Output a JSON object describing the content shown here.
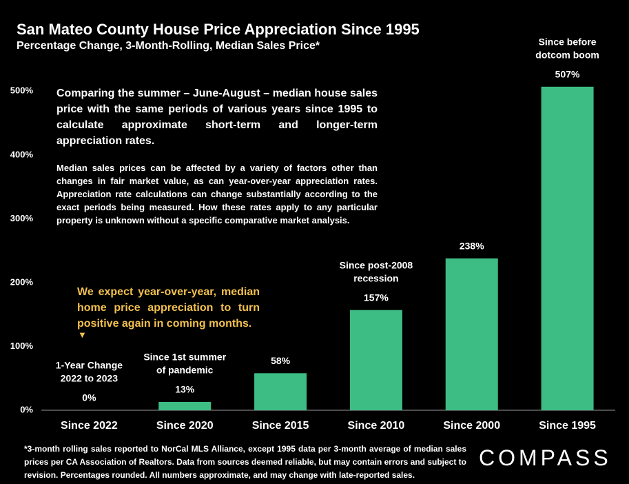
{
  "chart_data": {
    "type": "bar",
    "title": "San Mateo County House Price Appreciation Since 1995",
    "subtitle": "Percentage Change, 3-Month-Rolling, Median Sales Price*",
    "categories": [
      "Since 2022",
      "Since 2020",
      "Since 2015",
      "Since 2010",
      "Since 2000",
      "Since 1995"
    ],
    "values": [
      0,
      13,
      58,
      157,
      238,
      507
    ],
    "value_labels": [
      "0%",
      "13%",
      "58%",
      "157%",
      "238%",
      "507%"
    ],
    "bar_notes": [
      [
        "1-Year Change",
        "2022 to 2023"
      ],
      [
        "Since 1st summer",
        "of pandemic"
      ],
      null,
      [
        "Since post-2008",
        "recession"
      ],
      null,
      [
        "Since before",
        "dotcom boom"
      ]
    ],
    "color": "#3dbd84",
    "ylim": [
      0,
      550
    ],
    "yticks": [
      {
        "value": 0,
        "label": "0%"
      },
      {
        "value": 100,
        "label": "100%"
      },
      {
        "value": 200,
        "label": "200%"
      },
      {
        "value": 300,
        "label": "300%"
      },
      {
        "value": 400,
        "label": "400%"
      },
      {
        "value": 500,
        "label": "500%"
      }
    ],
    "grid": false,
    "annotations": [
      "Comparing the summer – June-August – median house sales price with the same periods of various years since 1995 to calculate approximate short-term and longer-term appreciation rates.",
      "Median sales prices can be affected by a variety of factors other than changes in fair market value, as can year-over-year appreciation rates. Appreciation rate calculations can change substantially according to the exact periods being measured. How these rates apply to any particular property is unknown without a specific comparative market analysis.",
      "We expect year-over-year, median home price appreciation to turn positive again in coming months.",
      "▼"
    ],
    "footnote": "*3-month rolling sales reported to NorCal MLS Alliance, except 1995 data per 3-month average of median sales prices per CA Association of Realtors. Data from sources deemed reliable, but may contain errors and subject to revision. Percentages rounded. All numbers approximate, and may change with late-reported sales.",
    "logo": "COMPASS"
  }
}
